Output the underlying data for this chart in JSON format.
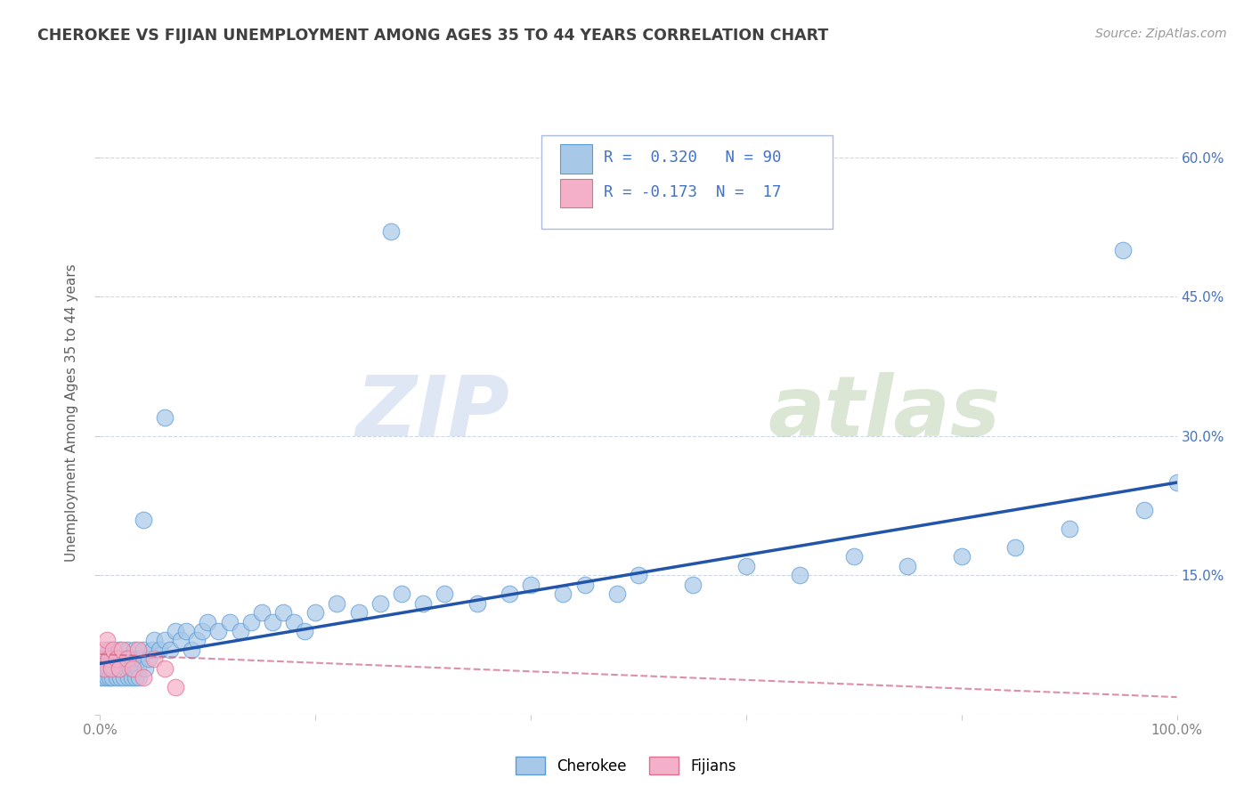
{
  "title": "CHEROKEE VS FIJIAN UNEMPLOYMENT AMONG AGES 35 TO 44 YEARS CORRELATION CHART",
  "source": "Source: ZipAtlas.com",
  "ylabel": "Unemployment Among Ages 35 to 44 years",
  "xlim": [
    0.0,
    1.0
  ],
  "ylim": [
    0.0,
    0.65
  ],
  "xticks": [
    0.0,
    0.2,
    0.4,
    0.6,
    0.8,
    1.0
  ],
  "xticklabels": [
    "0.0%",
    "",
    "",
    "",
    "",
    "100.0%"
  ],
  "yticks": [
    0.0,
    0.15,
    0.3,
    0.45,
    0.6
  ],
  "yticklabels_right": [
    "",
    "15.0%",
    "30.0%",
    "45.0%",
    "60.0%"
  ],
  "cherokee_color": "#a8c8e8",
  "cherokee_edge": "#5b9bd5",
  "fijian_color": "#f4b0c8",
  "fijian_edge": "#e07090",
  "cherokee_R": "0.320",
  "cherokee_N": "90",
  "fijian_R": "-0.173",
  "fijian_N": "17",
  "legend_label_cherokee": "Cherokee",
  "legend_label_fijian": "Fijians",
  "watermark_zip": "ZIP",
  "watermark_atlas": "atlas",
  "grid_color": "#c8d4e8",
  "title_color": "#404040",
  "axis_label_color": "#606060",
  "tick_color": "#808080",
  "right_tick_color": "#4472c4",
  "cherokee_line_color": "#2255aa",
  "fijian_line_color": "#d06080",
  "background_color": "#ffffff",
  "cherokee_x": [
    0.0,
    0.001,
    0.002,
    0.003,
    0.004,
    0.005,
    0.006,
    0.007,
    0.008,
    0.009,
    0.01,
    0.011,
    0.012,
    0.013,
    0.014,
    0.015,
    0.016,
    0.017,
    0.018,
    0.019,
    0.02,
    0.021,
    0.022,
    0.023,
    0.024,
    0.025,
    0.026,
    0.027,
    0.028,
    0.029,
    0.03,
    0.031,
    0.032,
    0.033,
    0.034,
    0.035,
    0.036,
    0.038,
    0.04,
    0.042,
    0.045,
    0.048,
    0.05,
    0.055,
    0.06,
    0.065,
    0.07,
    0.075,
    0.08,
    0.085,
    0.09,
    0.095,
    0.1,
    0.11,
    0.12,
    0.13,
    0.14,
    0.15,
    0.16,
    0.17,
    0.18,
    0.19,
    0.2,
    0.22,
    0.24,
    0.26,
    0.27,
    0.28,
    0.3,
    0.32,
    0.35,
    0.38,
    0.4,
    0.43,
    0.45,
    0.48,
    0.5,
    0.55,
    0.6,
    0.65,
    0.7,
    0.75,
    0.8,
    0.85,
    0.9,
    0.95,
    0.97,
    1.0,
    0.06,
    0.04
  ],
  "cherokee_y": [
    0.04,
    0.05,
    0.06,
    0.04,
    0.05,
    0.06,
    0.04,
    0.05,
    0.07,
    0.04,
    0.06,
    0.04,
    0.05,
    0.06,
    0.05,
    0.04,
    0.06,
    0.05,
    0.07,
    0.04,
    0.06,
    0.05,
    0.04,
    0.06,
    0.05,
    0.07,
    0.04,
    0.06,
    0.05,
    0.04,
    0.06,
    0.05,
    0.07,
    0.04,
    0.06,
    0.05,
    0.04,
    0.06,
    0.07,
    0.05,
    0.06,
    0.07,
    0.08,
    0.07,
    0.08,
    0.07,
    0.09,
    0.08,
    0.09,
    0.07,
    0.08,
    0.09,
    0.1,
    0.09,
    0.1,
    0.09,
    0.1,
    0.11,
    0.1,
    0.11,
    0.1,
    0.09,
    0.11,
    0.12,
    0.11,
    0.12,
    0.52,
    0.13,
    0.12,
    0.13,
    0.12,
    0.13,
    0.14,
    0.13,
    0.14,
    0.13,
    0.15,
    0.14,
    0.16,
    0.15,
    0.17,
    0.16,
    0.17,
    0.18,
    0.2,
    0.5,
    0.22,
    0.25,
    0.32,
    0.21
  ],
  "fijian_x": [
    0.0,
    0.002,
    0.004,
    0.006,
    0.008,
    0.01,
    0.012,
    0.015,
    0.018,
    0.02,
    0.025,
    0.03,
    0.035,
    0.04,
    0.05,
    0.06,
    0.07
  ],
  "fijian_y": [
    0.06,
    0.07,
    0.05,
    0.08,
    0.06,
    0.05,
    0.07,
    0.06,
    0.05,
    0.07,
    0.06,
    0.05,
    0.07,
    0.04,
    0.06,
    0.05,
    0.03
  ]
}
